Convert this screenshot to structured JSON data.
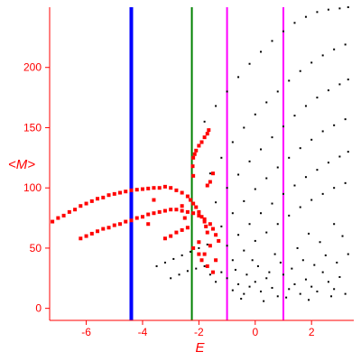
{
  "chart_data": {
    "type": "scatter",
    "title": "",
    "xlabel": "E",
    "ylabel": "<M>",
    "xlim": [
      -7.3,
      3.5
    ],
    "ylim": [
      -10,
      250
    ],
    "grid": false,
    "axis_color": "#ff0000",
    "x_ticks": [
      -6,
      -4,
      -2,
      0,
      2
    ],
    "x_tick_labels": [
      "-6",
      "-4",
      "-2",
      "0",
      "2"
    ],
    "y_ticks": [
      0,
      50,
      100,
      150,
      200
    ],
    "y_tick_labels": [
      "0",
      "50",
      "100",
      "150",
      "200"
    ],
    "vertical_lines": [
      {
        "x": -4.4,
        "color": "#0000ff"
      },
      {
        "x": -2.25,
        "color": "#008000"
      },
      {
        "x": -1.0,
        "color": "#ff00ff"
      },
      {
        "x": 1.0,
        "color": "#ff00ff"
      }
    ],
    "series": [
      {
        "color": "#ff0000",
        "marker": "square",
        "points": [
          [
            -7.2,
            72
          ],
          [
            -7.0,
            75
          ],
          [
            -6.8,
            77
          ],
          [
            -6.6,
            80
          ],
          [
            -6.4,
            82
          ],
          [
            -6.2,
            85
          ],
          [
            -6.0,
            87
          ],
          [
            -5.8,
            89
          ],
          [
            -5.6,
            91
          ],
          [
            -5.4,
            92
          ],
          [
            -5.2,
            94
          ],
          [
            -5.0,
            95
          ],
          [
            -4.8,
            96
          ],
          [
            -4.6,
            97
          ],
          [
            -4.4,
            98
          ],
          [
            -4.2,
            98.5
          ],
          [
            -4.0,
            99
          ],
          [
            -3.8,
            99.5
          ],
          [
            -3.6,
            100
          ],
          [
            -3.4,
            100
          ],
          [
            -3.2,
            101
          ],
          [
            -3.0,
            100
          ],
          [
            -2.8,
            98
          ],
          [
            -2.6,
            96
          ],
          [
            -2.4,
            93
          ],
          [
            -2.3,
            90
          ],
          [
            -2.2,
            87
          ],
          [
            -2.1,
            84
          ],
          [
            -2.0,
            80
          ],
          [
            -1.9,
            76
          ],
          [
            -1.8,
            72
          ],
          [
            -1.75,
            68
          ],
          [
            -1.7,
            63
          ],
          [
            -6.2,
            58
          ],
          [
            -6.0,
            60
          ],
          [
            -5.8,
            62
          ],
          [
            -5.6,
            64
          ],
          [
            -5.4,
            66
          ],
          [
            -5.2,
            67
          ],
          [
            -5.0,
            69
          ],
          [
            -4.8,
            70
          ],
          [
            -4.6,
            72
          ],
          [
            -4.4,
            73
          ],
          [
            -4.2,
            75
          ],
          [
            -4.0,
            76
          ],
          [
            -3.8,
            78
          ],
          [
            -3.6,
            79
          ],
          [
            -3.4,
            80
          ],
          [
            -3.2,
            81
          ],
          [
            -3.0,
            82
          ],
          [
            -2.8,
            82
          ],
          [
            -2.6,
            81
          ],
          [
            -2.4,
            80
          ],
          [
            -2.2,
            79
          ],
          [
            -2.0,
            77
          ],
          [
            -1.8,
            74
          ],
          [
            -1.6,
            70
          ],
          [
            -1.5,
            66
          ],
          [
            -1.4,
            61
          ],
          [
            -1.3,
            56
          ],
          [
            -2.2,
            125
          ],
          [
            -2.15,
            128
          ],
          [
            -2.1,
            131
          ],
          [
            -2.0,
            135
          ],
          [
            -1.9,
            138
          ],
          [
            -1.8,
            142
          ],
          [
            -1.7,
            145
          ],
          [
            -1.65,
            148
          ],
          [
            -2.22,
            118
          ],
          [
            -2.2,
            110
          ],
          [
            -1.5,
            112
          ],
          [
            -1.7,
            102
          ],
          [
            -1.6,
            105
          ],
          [
            -3.8,
            70
          ],
          [
            -3.6,
            90
          ],
          [
            -3.2,
            58
          ],
          [
            -3.0,
            60
          ],
          [
            -2.8,
            63
          ],
          [
            -2.6,
            65
          ],
          [
            -2.4,
            67
          ],
          [
            -2.2,
            50
          ],
          [
            -2.0,
            55
          ],
          [
            -1.8,
            45
          ],
          [
            -1.6,
            52
          ],
          [
            -1.4,
            40
          ],
          [
            -2.6,
            85
          ],
          [
            -2.5,
            75
          ],
          [
            -2.0,
            45
          ],
          [
            -1.9,
            40
          ],
          [
            -1.7,
            35
          ],
          [
            -1.5,
            30
          ]
        ]
      },
      {
        "color": "#000000",
        "marker": "dot",
        "points": [
          [
            -1.8,
            155
          ],
          [
            -1.4,
            168
          ],
          [
            -1.0,
            180
          ],
          [
            -0.6,
            192
          ],
          [
            -0.2,
            203
          ],
          [
            0.2,
            213
          ],
          [
            0.6,
            222
          ],
          [
            1.0,
            230
          ],
          [
            1.4,
            237
          ],
          [
            1.8,
            242
          ],
          [
            2.2,
            246
          ],
          [
            2.6,
            248
          ],
          [
            3.0,
            249
          ],
          [
            3.3,
            250
          ],
          [
            -1.6,
            112
          ],
          [
            -1.2,
            125
          ],
          [
            -0.8,
            138
          ],
          [
            -0.4,
            150
          ],
          [
            0.0,
            161
          ],
          [
            0.4,
            171
          ],
          [
            0.8,
            180
          ],
          [
            1.2,
            189
          ],
          [
            1.6,
            197
          ],
          [
            2.0,
            204
          ],
          [
            2.4,
            210
          ],
          [
            2.8,
            215
          ],
          [
            3.2,
            219
          ],
          [
            -1.4,
            88
          ],
          [
            -1.0,
            100
          ],
          [
            -0.6,
            111
          ],
          [
            -0.2,
            122
          ],
          [
            0.2,
            132
          ],
          [
            0.6,
            142
          ],
          [
            1.0,
            151
          ],
          [
            1.4,
            160
          ],
          [
            1.8,
            168
          ],
          [
            2.2,
            175
          ],
          [
            2.6,
            181
          ],
          [
            3.0,
            186
          ],
          [
            3.3,
            190
          ],
          [
            -1.2,
            68
          ],
          [
            -0.8,
            79
          ],
          [
            -0.4,
            89
          ],
          [
            0.0,
            99
          ],
          [
            0.4,
            108
          ],
          [
            0.8,
            117
          ],
          [
            1.2,
            125
          ],
          [
            1.6,
            133
          ],
          [
            2.0,
            140
          ],
          [
            2.4,
            147
          ],
          [
            2.8,
            152
          ],
          [
            3.2,
            157
          ],
          [
            -1.0,
            52
          ],
          [
            -0.6,
            61
          ],
          [
            -0.2,
            70
          ],
          [
            0.2,
            79
          ],
          [
            0.6,
            87
          ],
          [
            1.0,
            95
          ],
          [
            1.4,
            102
          ],
          [
            1.8,
            109
          ],
          [
            2.2,
            115
          ],
          [
            2.6,
            121
          ],
          [
            3.0,
            126
          ],
          [
            3.3,
            130
          ],
          [
            -0.8,
            40
          ],
          [
            -0.4,
            48
          ],
          [
            0.0,
            56
          ],
          [
            0.4,
            63
          ],
          [
            0.8,
            70
          ],
          [
            1.2,
            77
          ],
          [
            1.6,
            84
          ],
          [
            2.0,
            90
          ],
          [
            2.4,
            95
          ],
          [
            2.8,
            100
          ],
          [
            3.2,
            104
          ],
          [
            -3.5,
            35
          ],
          [
            -3.2,
            38
          ],
          [
            -2.9,
            41
          ],
          [
            -2.6,
            44
          ],
          [
            -2.3,
            47
          ],
          [
            -2.0,
            50
          ],
          [
            -1.7,
            53
          ],
          [
            -3.0,
            25
          ],
          [
            -2.7,
            28
          ],
          [
            -2.4,
            31
          ],
          [
            -2.1,
            33
          ],
          [
            -1.8,
            35
          ],
          [
            -0.8,
            15
          ],
          [
            -0.6,
            20
          ],
          [
            -0.4,
            12
          ],
          [
            -0.2,
            18
          ],
          [
            0.0,
            22
          ],
          [
            0.2,
            14
          ],
          [
            0.4,
            25
          ],
          [
            0.6,
            17
          ],
          [
            0.8,
            10
          ],
          [
            1.0,
            28
          ],
          [
            1.2,
            16
          ],
          [
            1.4,
            20
          ],
          [
            1.6,
            12
          ],
          [
            1.8,
            24
          ],
          [
            2.0,
            18
          ],
          [
            2.2,
            14
          ],
          [
            2.4,
            30
          ],
          [
            2.6,
            22
          ],
          [
            2.8,
            16
          ],
          [
            3.0,
            26
          ],
          [
            3.2,
            12
          ],
          [
            -1.2,
            30
          ],
          [
            -1.0,
            25
          ],
          [
            -0.7,
            32
          ],
          [
            -0.3,
            28
          ],
          [
            0.1,
            35
          ],
          [
            0.5,
            30
          ],
          [
            0.9,
            38
          ],
          [
            1.3,
            33
          ],
          [
            1.7,
            40
          ],
          [
            2.1,
            36
          ],
          [
            2.5,
            44
          ],
          [
            2.9,
            38
          ],
          [
            3.3,
            45
          ],
          [
            -0.5,
            8
          ],
          [
            0.3,
            6
          ],
          [
            1.1,
            9
          ],
          [
            1.9,
            7
          ],
          [
            2.7,
            10
          ],
          [
            -1.6,
            28
          ],
          [
            -1.4,
            22
          ],
          [
            1.5,
            50
          ],
          [
            2.3,
            55
          ],
          [
            3.1,
            60
          ],
          [
            0.7,
            45
          ],
          [
            -0.1,
            40
          ],
          [
            2.8,
            70
          ],
          [
            1.9,
            62
          ]
        ]
      }
    ]
  }
}
